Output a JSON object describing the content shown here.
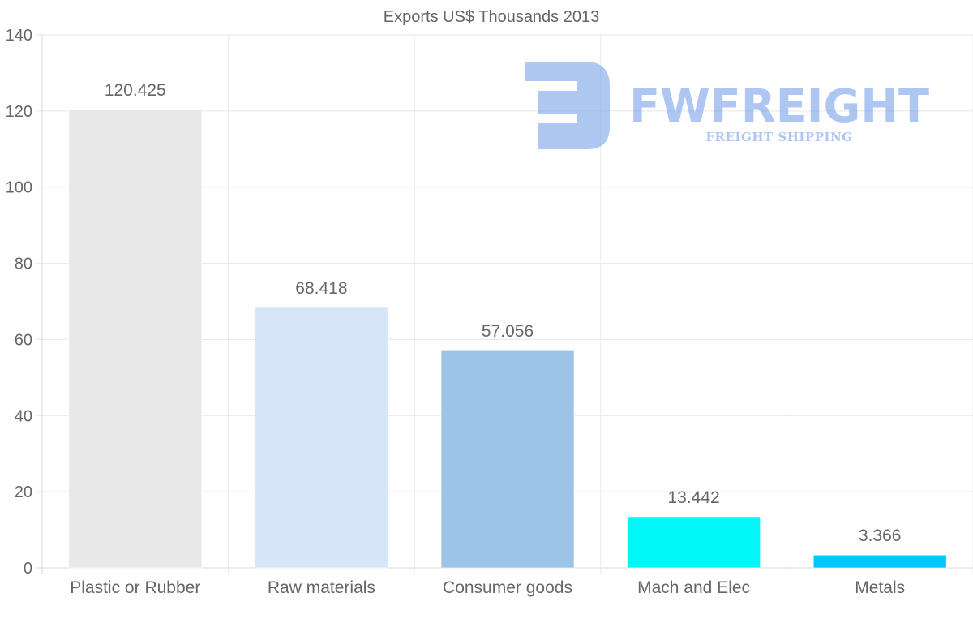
{
  "chart_data": {
    "type": "bar",
    "title": "Exports US$ Thousands 2013",
    "xlabel": "",
    "ylabel": "",
    "categories": [
      "Plastic or Rubber",
      "Raw materials",
      "Consumer goods",
      "Mach and Elec",
      "Metals"
    ],
    "values": [
      120.425,
      68.418,
      57.056,
      13.442,
      3.366
    ],
    "value_labels": [
      "120.425",
      "68.418",
      "57.056",
      "13.442",
      "3.366"
    ],
    "colors": [
      "#e8e8e8",
      "#d6e6f8",
      "#9cc4e6",
      "#00f7f7",
      "#00c8ff"
    ],
    "ylim": [
      0,
      140
    ],
    "yticks": [
      0,
      20,
      40,
      60,
      80,
      100,
      120,
      140
    ],
    "grid": true,
    "legend": "none"
  },
  "watermark": {
    "logo_icon": "fw-logo-icon",
    "name": "FWFREIGHT",
    "tagline": "FREIGHT SHIPPING",
    "color": "#6d9be8"
  }
}
